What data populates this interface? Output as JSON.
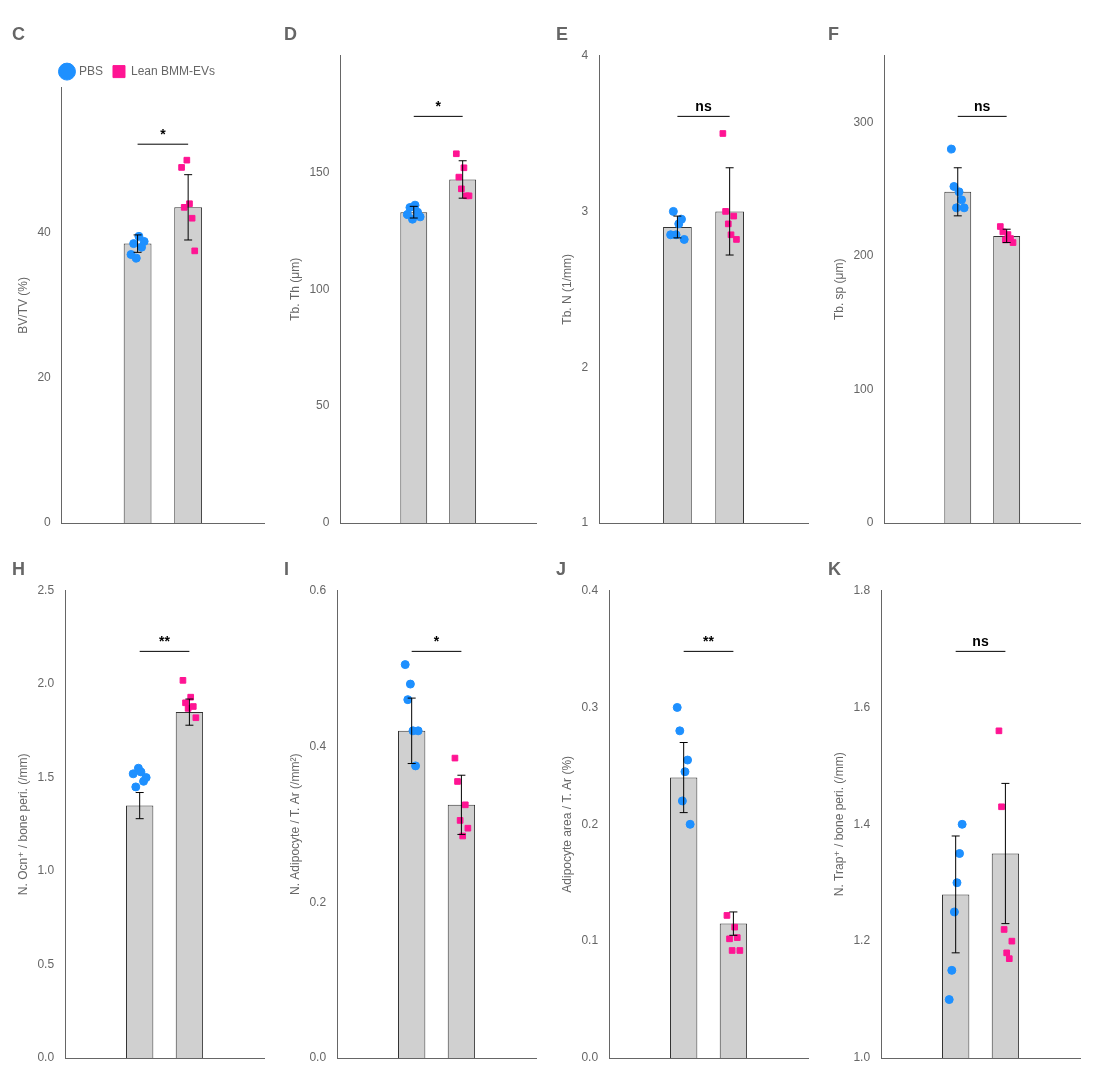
{
  "chart_data": [
    {
      "type": "bar",
      "title": "C",
      "ylabel": "BV/TV (%)",
      "categories": [
        null,
        null
      ],
      "ylim": [
        0,
        60
      ],
      "yticks": [
        0,
        20,
        40
      ],
      "grid": false,
      "tick_labels": "y",
      "legend": "top",
      "annotations": [
        "*"
      ],
      "series": [
        {
          "type": "bar",
          "color": "#D0D0D0",
          "values": [
            38.5,
            43.5
          ],
          "errors": [
            1.2,
            4.5
          ]
        },
        {
          "name": "PBS",
          "type": "scatter",
          "marker": "circle",
          "color": "#1E90FF",
          "values": [
            [
              37.0,
              38.5,
              36.5,
              39.5,
              38.0,
              38.8
            ],
            null
          ]
        },
        {
          "name": "Lean BMM-EVs",
          "type": "scatter",
          "marker": "square",
          "color": "#FF1493",
          "values": [
            null,
            [
              49.0,
              43.5,
              50.0,
              44.0,
              42.0,
              37.5
            ]
          ]
        }
      ]
    },
    {
      "type": "bar",
      "title": "D",
      "ylabel": "Tb. Th (μm)",
      "categories": [
        null,
        null
      ],
      "ylim": [
        0,
        200
      ],
      "yticks": [
        0,
        50,
        100,
        150
      ],
      "grid": false,
      "tick_labels": "y",
      "annotations": [
        "*"
      ],
      "series": [
        {
          "type": "bar",
          "color": "#D0D0D0",
          "values": [
            133,
            147
          ],
          "errors": [
            2.5,
            8.0
          ]
        },
        {
          "name": "PBS",
          "type": "scatter",
          "marker": "circle",
          "color": "#1E90FF",
          "values": [
            [
              132,
              135,
              130,
              136,
              133,
              131
            ],
            null
          ]
        },
        {
          "name": "Lean BMM-EVs",
          "type": "scatter",
          "marker": "square",
          "color": "#FF1493",
          "values": [
            null,
            [
              158,
              148,
              143,
              152,
              140,
              140
            ]
          ]
        }
      ]
    },
    {
      "type": "bar",
      "title": "E",
      "ylabel": "Tb. N (1/mm)",
      "categories": [
        null,
        null
      ],
      "ylim": [
        1,
        4
      ],
      "yticks": [
        1,
        2,
        3,
        4
      ],
      "grid": false,
      "tick_labels": "y",
      "annotations": [
        "ns"
      ],
      "series": [
        {
          "type": "bar",
          "color": "#D0D0D0",
          "values": [
            2.9,
            3.0
          ],
          "errors": [
            0.07,
            0.28
          ]
        },
        {
          "name": "PBS",
          "type": "scatter",
          "marker": "circle",
          "color": "#1E90FF",
          "values": [
            [
              2.85,
              3.0,
              2.85,
              2.92,
              2.95,
              2.82
            ],
            null
          ]
        },
        {
          "name": "Lean BMM-EVs",
          "type": "scatter",
          "marker": "square",
          "color": "#FF1493",
          "values": [
            null,
            [
              3.5,
              3.0,
              2.92,
              2.85,
              2.97,
              2.82
            ]
          ]
        }
      ]
    },
    {
      "type": "bar",
      "title": "F",
      "ylabel": "Tb. sp (μm)",
      "categories": [
        null,
        null
      ],
      "ylim": [
        0,
        350
      ],
      "yticks": [
        0,
        100,
        200,
        300
      ],
      "grid": false,
      "tick_labels": "y",
      "annotations": [
        "ns"
      ],
      "series": [
        {
          "type": "bar",
          "color": "#D0D0D0",
          "values": [
            248,
            215
          ],
          "errors": [
            18,
            5
          ]
        },
        {
          "name": "PBS",
          "type": "scatter",
          "marker": "circle",
          "color": "#1E90FF",
          "values": [
            [
              280,
              252,
              236,
              248,
              242,
              236
            ],
            null
          ]
        },
        {
          "name": "Lean BMM-EVs",
          "type": "scatter",
          "marker": "square",
          "color": "#FF1493",
          "values": [
            null,
            [
              222,
              218,
              212,
              216,
              213,
              210
            ]
          ]
        }
      ]
    },
    {
      "type": "bar",
      "title": "H",
      "ylabel": "N. Ocn⁺ / bone peri. (/mm)",
      "categories": [
        null,
        null
      ],
      "ylim": [
        0,
        2.5
      ],
      "yticks": [
        {
          "value": 0,
          "label": "0.0"
        },
        0.5,
        {
          "value": 1,
          "label": "1.0"
        },
        1.5,
        {
          "value": 2,
          "label": "2.0"
        },
        2.5
      ],
      "grid": false,
      "tick_labels": "y",
      "annotations": [
        "**"
      ],
      "series": [
        {
          "type": "bar",
          "color": "#D0D0D0",
          "values": [
            1.35,
            1.85
          ],
          "errors": [
            0.07,
            0.07
          ]
        },
        {
          "name": "PBS",
          "type": "scatter",
          "marker": "circle",
          "color": "#1E90FF",
          "values": [
            [
              1.52,
              1.45,
              1.55,
              1.53,
              1.48,
              1.5
            ],
            null
          ]
        },
        {
          "name": "Lean BMM-EVs",
          "type": "scatter",
          "marker": "square",
          "color": "#FF1493",
          "values": [
            null,
            [
              2.02,
              1.9,
              1.87,
              1.93,
              1.88,
              1.82
            ]
          ]
        }
      ]
    },
    {
      "type": "bar",
      "title": "I",
      "ylabel": "N. Adipocyte / T. Ar (/mm²)",
      "categories": [
        null,
        null
      ],
      "ylim": [
        0,
        0.6
      ],
      "yticks": [
        {
          "value": 0,
          "label": "0.0"
        },
        0.2,
        0.4,
        0.6
      ],
      "grid": false,
      "tick_labels": "y",
      "annotations": [
        "*"
      ],
      "series": [
        {
          "type": "bar",
          "color": "#D0D0D0",
          "values": [
            0.42,
            0.325
          ],
          "errors": [
            0.042,
            0.038
          ]
        },
        {
          "name": "PBS",
          "type": "scatter",
          "marker": "circle",
          "color": "#1E90FF",
          "values": [
            [
              0.505,
              0.46,
              0.48,
              0.42,
              0.375,
              0.42
            ],
            null
          ]
        },
        {
          "name": "Lean BMM-EVs",
          "type": "scatter",
          "marker": "square",
          "color": "#FF1493",
          "values": [
            null,
            [
              0.385,
              0.355,
              0.305,
              0.285,
              0.325,
              0.295
            ]
          ]
        }
      ]
    },
    {
      "type": "bar",
      "title": "J",
      "ylabel": "Adipocyte area / T. Ar (%)",
      "categories": [
        null,
        null
      ],
      "ylim": [
        0,
        0.4
      ],
      "yticks": [
        {
          "value": 0,
          "label": "0.0"
        },
        0.1,
        0.2,
        0.3,
        0.4
      ],
      "grid": false,
      "tick_labels": "y",
      "annotations": [
        "**"
      ],
      "series": [
        {
          "type": "bar",
          "color": "#D0D0D0",
          "values": [
            0.24,
            0.115
          ],
          "errors": [
            0.03,
            0.01
          ]
        },
        {
          "name": "PBS",
          "type": "scatter",
          "marker": "circle",
          "color": "#1E90FF",
          "values": [
            [
              0.3,
              0.28,
              0.22,
              0.245,
              0.255,
              0.2
            ],
            null
          ]
        },
        {
          "name": "Lean BMM-EVs",
          "type": "scatter",
          "marker": "square",
          "color": "#FF1493",
          "values": [
            null,
            [
              0.122,
              0.102,
              0.092,
              0.112,
              0.103,
              0.092
            ]
          ]
        }
      ]
    },
    {
      "type": "bar",
      "title": "K",
      "ylabel": "N. Trap⁺ / bone peri. (/mm)",
      "categories": [
        null,
        null
      ],
      "ylim": [
        1.0,
        1.8
      ],
      "yticks": [
        {
          "value": 1.0,
          "label": "1.0"
        },
        1.2,
        1.4,
        1.6,
        1.8
      ],
      "grid": false,
      "tick_labels": "y",
      "annotations": [
        "ns"
      ],
      "series": [
        {
          "type": "bar",
          "color": "#D0D0D0",
          "values": [
            1.28,
            1.35
          ],
          "errors": [
            0.1,
            0.12
          ]
        },
        {
          "name": "PBS",
          "type": "scatter",
          "marker": "circle",
          "color": "#1E90FF",
          "values": [
            [
              1.1,
              1.15,
              1.25,
              1.3,
              1.35,
              1.4
            ],
            null
          ]
        },
        {
          "name": "Lean BMM-EVs",
          "type": "scatter",
          "marker": "square",
          "color": "#FF1493",
          "values": [
            null,
            [
              1.56,
              1.43,
              1.22,
              1.18,
              1.17,
              1.2
            ]
          ]
        }
      ]
    }
  ]
}
